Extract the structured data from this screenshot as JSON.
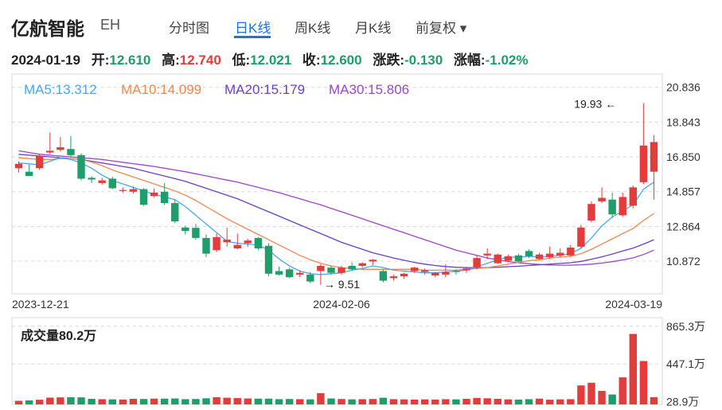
{
  "header": {
    "stock_name": "亿航智能",
    "stock_code": "EH",
    "tabs": [
      {
        "label": "分时图",
        "active": false
      },
      {
        "label": "日K线",
        "active": true
      },
      {
        "label": "周K线",
        "active": false
      },
      {
        "label": "月K线",
        "active": false
      },
      {
        "label": "前复权 ▾",
        "active": false
      }
    ]
  },
  "quote": {
    "date": "2024-01-19",
    "open_label": "开:",
    "open": "12.610",
    "high_label": "高:",
    "high": "12.740",
    "low_label": "低:",
    "low": "12.021",
    "close_label": "收:",
    "close": "12.600",
    "change_label": "涨跌:",
    "change": "-0.130",
    "pct_label": "涨幅:",
    "pct": "-1.02%"
  },
  "colors": {
    "up": "#e23c3c",
    "down": "#1e9e6a",
    "ma5": "#4aa8f0",
    "ma10": "#f08850",
    "ma20": "#6a3fc8",
    "ma30": "#9b45d0",
    "grid": "#d8d8d8"
  },
  "chart_data": [
    {
      "type": "candlestick",
      "legend": [
        {
          "label": "MA5:13.312",
          "key": "ma5"
        },
        {
          "label": "MA10:14.099",
          "key": "ma10"
        },
        {
          "label": "MA20:15.179",
          "key": "ma20"
        },
        {
          "label": "MA30:15.806",
          "key": "ma30"
        }
      ],
      "y_ticks": [
        "20.836",
        "18.843",
        "16.850",
        "14.857",
        "12.864",
        "10.872"
      ],
      "ylim": [
        9.0,
        21.6
      ],
      "x_ticks": [
        {
          "index": 0,
          "label": "2023-12-21"
        },
        {
          "index": 31,
          "label": "2024-02-06"
        },
        {
          "index": 60,
          "label": "2024-03-19"
        }
      ],
      "annotations": [
        {
          "label": "19.93",
          "index": 58,
          "value": 19.93
        },
        {
          "label": "9.51",
          "index": 29,
          "value": 9.51
        }
      ],
      "candles": [
        [
          16.2,
          16.6,
          15.95,
          16.45
        ],
        [
          16.0,
          16.4,
          15.8,
          15.75
        ],
        [
          16.2,
          17.0,
          16.1,
          16.9
        ],
        [
          17.1,
          18.25,
          17.0,
          17.2
        ],
        [
          17.25,
          18.0,
          17.15,
          17.4
        ],
        [
          17.3,
          18.05,
          16.85,
          16.95
        ],
        [
          16.95,
          17.05,
          15.5,
          15.6
        ],
        [
          15.65,
          15.75,
          15.35,
          15.55
        ],
        [
          15.35,
          15.65,
          15.25,
          15.5
        ],
        [
          15.6,
          15.7,
          15.0,
          15.05
        ],
        [
          14.9,
          15.1,
          14.8,
          14.95
        ],
        [
          14.85,
          15.15,
          14.75,
          15.0
        ],
        [
          15.0,
          15.05,
          14.05,
          14.1
        ],
        [
          14.6,
          15.05,
          14.5,
          14.8
        ],
        [
          14.85,
          15.35,
          14.1,
          14.2
        ],
        [
          14.2,
          14.4,
          13.05,
          13.15
        ],
        [
          12.8,
          12.9,
          12.4,
          12.6
        ],
        [
          12.78,
          13.0,
          12.1,
          12.2
        ],
        [
          12.2,
          12.4,
          11.1,
          11.3
        ],
        [
          11.5,
          12.45,
          11.4,
          12.25
        ],
        [
          11.95,
          12.8,
          11.7,
          12.1
        ],
        [
          11.6,
          12.45,
          11.55,
          11.8
        ],
        [
          11.9,
          12.15,
          11.7,
          12.05
        ],
        [
          12.2,
          12.25,
          11.5,
          11.6
        ],
        [
          11.75,
          11.9,
          10.0,
          10.15
        ],
        [
          10.3,
          10.55,
          10.05,
          10.1
        ],
        [
          10.4,
          10.5,
          9.9,
          9.95
        ],
        [
          10.1,
          10.35,
          9.95,
          10.2
        ],
        [
          10.1,
          10.25,
          9.6,
          9.7
        ],
        [
          10.3,
          10.7,
          9.51,
          10.6
        ],
        [
          10.5,
          10.6,
          10.1,
          10.2
        ],
        [
          10.2,
          10.6,
          10.1,
          10.5
        ],
        [
          10.6,
          10.8,
          10.3,
          10.4
        ],
        [
          10.6,
          10.8,
          10.5,
          10.75
        ],
        [
          10.85,
          11.0,
          10.65,
          10.95
        ],
        [
          10.3,
          10.4,
          9.65,
          9.75
        ],
        [
          9.9,
          10.1,
          9.75,
          10.0
        ],
        [
          10.0,
          10.2,
          9.85,
          10.15
        ],
        [
          10.3,
          10.55,
          10.2,
          10.5
        ],
        [
          10.25,
          10.45,
          10.1,
          10.35
        ],
        [
          10.05,
          10.25,
          9.95,
          10.2
        ],
        [
          10.1,
          10.7,
          9.95,
          10.25
        ],
        [
          10.3,
          10.4,
          10.1,
          10.25
        ],
        [
          10.35,
          10.55,
          10.2,
          10.45
        ],
        [
          10.5,
          11.2,
          10.4,
          11.05
        ],
        [
          11.2,
          11.6,
          11.0,
          11.3
        ],
        [
          10.75,
          11.3,
          10.7,
          11.25
        ],
        [
          10.9,
          11.25,
          10.8,
          11.15
        ],
        [
          11.2,
          11.3,
          10.8,
          10.85
        ],
        [
          11.45,
          11.55,
          11.05,
          11.15
        ],
        [
          11.0,
          11.35,
          10.95,
          11.25
        ],
        [
          11.1,
          11.7,
          11.0,
          11.3
        ],
        [
          11.2,
          11.6,
          11.1,
          11.35
        ],
        [
          11.2,
          11.8,
          11.1,
          11.65
        ],
        [
          11.7,
          12.95,
          11.6,
          12.8
        ],
        [
          13.2,
          14.3,
          13.1,
          14.15
        ],
        [
          14.3,
          15.1,
          14.2,
          14.5
        ],
        [
          14.4,
          14.8,
          13.35,
          13.55
        ],
        [
          13.5,
          14.8,
          13.4,
          14.55
        ],
        [
          14.05,
          15.2,
          13.9,
          15.1
        ],
        [
          15.4,
          19.93,
          15.3,
          17.5
        ],
        [
          16.0,
          18.1,
          14.4,
          17.7
        ]
      ],
      "ma5": [
        16.5,
        16.45,
        16.4,
        16.6,
        16.8,
        16.7,
        16.5,
        16.2,
        15.8,
        15.5,
        15.3,
        15.1,
        14.9,
        14.7,
        14.55,
        14.4,
        14.0,
        13.5,
        13.0,
        12.5,
        12.0,
        11.9,
        11.85,
        11.8,
        11.5,
        11.0,
        10.6,
        10.3,
        10.15,
        10.1,
        10.15,
        10.2,
        10.35,
        10.45,
        10.6,
        10.5,
        10.35,
        10.3,
        10.25,
        10.2,
        10.2,
        10.25,
        10.3,
        10.35,
        10.55,
        10.75,
        10.95,
        11.1,
        11.1,
        11.15,
        11.1,
        11.15,
        11.2,
        11.3,
        11.6,
        12.2,
        12.9,
        13.4,
        13.75,
        14.1,
        15.0,
        15.4
      ],
      "ma10": [
        16.8,
        16.75,
        16.7,
        16.7,
        16.75,
        16.75,
        16.7,
        16.55,
        16.35,
        16.1,
        15.9,
        15.7,
        15.5,
        15.3,
        15.1,
        14.9,
        14.65,
        14.35,
        14.0,
        13.65,
        13.3,
        13.0,
        12.7,
        12.4,
        12.1,
        11.8,
        11.5,
        11.2,
        10.95,
        10.75,
        10.6,
        10.5,
        10.45,
        10.4,
        10.4,
        10.4,
        10.4,
        10.4,
        10.4,
        10.35,
        10.35,
        10.35,
        10.35,
        10.4,
        10.45,
        10.5,
        10.6,
        10.7,
        10.8,
        10.9,
        10.95,
        11.05,
        11.1,
        11.15,
        11.3,
        11.55,
        11.85,
        12.15,
        12.45,
        12.75,
        13.2,
        13.6
      ],
      "ma20": [
        17.0,
        16.95,
        16.9,
        16.85,
        16.8,
        16.75,
        16.7,
        16.6,
        16.5,
        16.4,
        16.3,
        16.2,
        16.05,
        15.9,
        15.75,
        15.6,
        15.45,
        15.25,
        15.05,
        14.85,
        14.65,
        14.45,
        14.2,
        13.95,
        13.7,
        13.45,
        13.2,
        12.95,
        12.7,
        12.45,
        12.2,
        11.95,
        11.75,
        11.55,
        11.35,
        11.2,
        11.05,
        10.92,
        10.8,
        10.7,
        10.62,
        10.56,
        10.52,
        10.5,
        10.5,
        10.5,
        10.52,
        10.55,
        10.58,
        10.62,
        10.66,
        10.7,
        10.74,
        10.78,
        10.86,
        10.98,
        11.12,
        11.28,
        11.45,
        11.62,
        11.85,
        12.1
      ],
      "ma30": [
        17.2,
        17.1,
        17.0,
        16.95,
        16.9,
        16.85,
        16.8,
        16.75,
        16.7,
        16.62,
        16.54,
        16.46,
        16.38,
        16.3,
        16.2,
        16.1,
        16.0,
        15.88,
        15.76,
        15.64,
        15.52,
        15.4,
        15.25,
        15.1,
        14.95,
        14.8,
        14.62,
        14.45,
        14.27,
        14.1,
        13.9,
        13.7,
        13.5,
        13.3,
        13.1,
        12.9,
        12.7,
        12.5,
        12.3,
        12.1,
        11.9,
        11.7,
        11.5,
        11.35,
        11.2,
        11.05,
        10.95,
        10.85,
        10.78,
        10.72,
        10.68,
        10.65,
        10.64,
        10.64,
        10.66,
        10.7,
        10.76,
        10.84,
        10.94,
        11.06,
        11.25,
        11.5
      ]
    },
    {
      "type": "bar",
      "title": "成交量80.2万",
      "y_ticks": [
        {
          "label": "865.3万",
          "value": 865.3
        },
        {
          "label": "447.1万",
          "value": 447.1
        },
        {
          "label": "28.9万",
          "value": 28.9
        }
      ],
      "ylim": [
        0,
        960
      ],
      "values": [
        40,
        45,
        52,
        75,
        78,
        80,
        78,
        62,
        58,
        56,
        54,
        62,
        60,
        64,
        64,
        66,
        58,
        60,
        68,
        80,
        74,
        70,
        66,
        64,
        64,
        58,
        60,
        58,
        56,
        125,
        66,
        60,
        56,
        58,
        60,
        74,
        58,
        56,
        54,
        56,
        54,
        58,
        56,
        62,
        72,
        68,
        62,
        56,
        54,
        58,
        64,
        52,
        56,
        58,
        210,
        240,
        150,
        110,
        300,
        780,
        480,
        80
      ]
    }
  ]
}
